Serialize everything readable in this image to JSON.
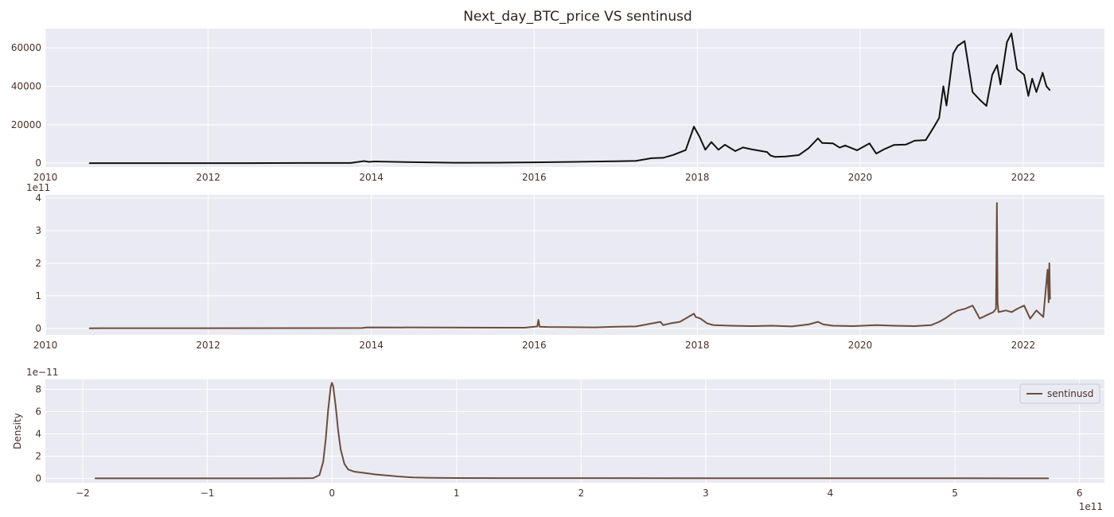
{
  "figure": {
    "title": "Next_day_BTC_price VS sentinusd"
  },
  "colors": {
    "panel_background": "#eaeaf2",
    "grid": "#ffffff",
    "price_line": "#111111",
    "sentinusd_line": "#6b4d3d",
    "text": "#4a3028"
  },
  "chart_data": [
    {
      "type": "line",
      "title": "Next_day_BTC_price VS sentinusd",
      "xlabel": "",
      "ylabel": "",
      "x_axis": "date",
      "xlim": [
        "2010-01-01",
        "2022-12-31"
      ],
      "xticks": [
        "2010",
        "2012",
        "2014",
        "2016",
        "2018",
        "2020",
        "2022"
      ],
      "ylim": [
        -2000,
        70000
      ],
      "yticks": [
        "0",
        "20000",
        "40000",
        "60000"
      ],
      "grid": true,
      "series": [
        {
          "color": "#111111",
          "x": [
            "2010-07-18",
            "2011-06-01",
            "2012-06-01",
            "2013-04-10",
            "2013-10-01",
            "2013-11-30",
            "2013-12-20",
            "2014-01-15",
            "2014-06-01",
            "2015-01-15",
            "2015-08-01",
            "2016-01-01",
            "2016-07-01",
            "2017-01-01",
            "2017-04-01",
            "2017-06-10",
            "2017-08-01",
            "2017-09-15",
            "2017-11-10",
            "2017-12-17",
            "2018-01-10",
            "2018-02-06",
            "2018-03-05",
            "2018-04-06",
            "2018-05-05",
            "2018-06-20",
            "2018-07-25",
            "2018-09-01",
            "2018-11-10",
            "2018-11-25",
            "2018-12-15",
            "2019-02-01",
            "2019-04-01",
            "2019-05-15",
            "2019-06-26",
            "2019-07-15",
            "2019-09-01",
            "2019-10-01",
            "2019-10-26",
            "2019-12-18",
            "2020-02-12",
            "2020-03-13",
            "2020-04-15",
            "2020-06-01",
            "2020-07-25",
            "2020-09-01",
            "2020-10-21",
            "2020-11-30",
            "2020-12-20",
            "2021-01-08",
            "2021-01-22",
            "2021-02-21",
            "2021-03-13",
            "2021-04-13",
            "2021-05-19",
            "2021-06-20",
            "2021-07-20",
            "2021-08-15",
            "2021-09-06",
            "2021-09-21",
            "2021-10-20",
            "2021-11-09",
            "2021-12-04",
            "2022-01-05",
            "2022-01-24",
            "2022-02-10",
            "2022-03-01",
            "2022-03-29",
            "2022-04-15",
            "2022-04-30"
          ],
          "values": [
            0.05,
            10,
            5,
            140,
            130,
            1100,
            700,
            900,
            600,
            220,
            280,
            430,
            680,
            1000,
            1200,
            2600,
            2800,
            4300,
            6800,
            19000,
            14000,
            7000,
            11000,
            7000,
            9600,
            6300,
            8200,
            7200,
            5800,
            4000,
            3300,
            3500,
            4200,
            7800,
            12900,
            10500,
            10300,
            8100,
            9200,
            6700,
            10300,
            5000,
            7100,
            9500,
            9700,
            11700,
            12000,
            19500,
            23500,
            40000,
            30000,
            57000,
            61000,
            63500,
            37000,
            33000,
            29800,
            46000,
            51000,
            41000,
            63000,
            67500,
            49000,
            46000,
            35000,
            44000,
            37000,
            47000,
            40000,
            38000
          ]
        }
      ]
    },
    {
      "type": "line",
      "title": "",
      "xlabel": "",
      "ylabel": "",
      "x_axis": "date",
      "xlim": [
        "2010-01-01",
        "2022-12-31"
      ],
      "xticks": [
        "2010",
        "2012",
        "2014",
        "2016",
        "2018",
        "2020",
        "2022"
      ],
      "ylim": [
        -0.2,
        4.1
      ],
      "yticks": [
        "0",
        "1",
        "2",
        "3",
        "4"
      ],
      "y_exponent": "1e11",
      "grid": true,
      "series": [
        {
          "color": "#6b4d3d",
          "x": [
            "2010-07-18",
            "2013-11-20",
            "2013-12-15",
            "2015-11-20",
            "2016-01-15",
            "2016-01-20",
            "2016-01-25",
            "2016-03-01",
            "2016-10-01",
            "2017-01-05",
            "2017-04-01",
            "2017-07-20",
            "2017-08-01",
            "2017-09-01",
            "2017-10-15",
            "2017-12-17",
            "2017-12-25",
            "2018-01-15",
            "2018-02-15",
            "2018-03-15",
            "2018-06-01",
            "2018-09-01",
            "2018-12-01",
            "2019-03-01",
            "2019-05-15",
            "2019-06-26",
            "2019-07-20",
            "2019-09-01",
            "2019-12-01",
            "2020-03-13",
            "2020-06-01",
            "2020-09-01",
            "2020-11-15",
            "2020-12-20",
            "2021-01-15",
            "2021-02-15",
            "2021-03-15",
            "2021-04-15",
            "2021-05-19",
            "2021-06-20",
            "2021-07-20",
            "2021-08-20",
            "2021-09-01",
            "2021-09-05",
            "2021-09-08",
            "2021-09-12",
            "2021-10-15",
            "2021-11-10",
            "2021-12-05",
            "2022-01-05",
            "2022-02-01",
            "2022-03-01",
            "2022-04-01",
            "2022-04-20",
            "2022-04-25",
            "2022-04-28",
            "2022-05-01"
          ],
          "values": [
            0.003,
            0.01,
            0.03,
            0.02,
            0.06,
            0.26,
            0.05,
            0.04,
            0.03,
            0.05,
            0.06,
            0.2,
            0.1,
            0.15,
            0.2,
            0.45,
            0.35,
            0.3,
            0.15,
            0.1,
            0.08,
            0.07,
            0.08,
            0.06,
            0.12,
            0.2,
            0.12,
            0.08,
            0.07,
            0.1,
            0.08,
            0.07,
            0.1,
            0.2,
            0.3,
            0.45,
            0.55,
            0.6,
            0.7,
            0.3,
            0.4,
            0.5,
            0.6,
            3.85,
            0.8,
            0.5,
            0.55,
            0.5,
            0.6,
            0.7,
            0.3,
            0.55,
            0.35,
            1.8,
            0.8,
            2.0,
            0.9
          ]
        }
      ]
    },
    {
      "type": "line",
      "title": "",
      "xlabel": "",
      "ylabel": "Density",
      "xlim": [
        -2.3,
        6.2
      ],
      "ylim": [
        -0.4,
        8.9
      ],
      "xticks": [
        "−2",
        "−1",
        "0",
        "1",
        "2",
        "3",
        "4",
        "5",
        "6"
      ],
      "yticks": [
        "0",
        "2",
        "4",
        "6",
        "8"
      ],
      "x_exponent": "1e11",
      "y_exponent": "1e−11",
      "legend": "top-right",
      "grid": true,
      "series": [
        {
          "name": "sentinusd",
          "color": "#6b4d3d",
          "x": [
            -1.9,
            -0.5,
            -0.15,
            -0.1,
            -0.07,
            -0.05,
            -0.03,
            -0.01,
            0.0,
            0.01,
            0.03,
            0.05,
            0.07,
            0.1,
            0.13,
            0.18,
            0.25,
            0.35,
            0.45,
            0.55,
            0.65,
            0.8,
            1.0,
            1.5,
            2.0,
            3.0,
            4.0,
            5.0,
            5.75
          ],
          "values": [
            0,
            0,
            0.02,
            0.3,
            1.5,
            3.5,
            6.2,
            8.2,
            8.6,
            8.3,
            6.5,
            4.3,
            2.6,
            1.3,
            0.8,
            0.6,
            0.5,
            0.35,
            0.25,
            0.15,
            0.08,
            0.05,
            0.03,
            0.02,
            0.02,
            0.01,
            0.01,
            0.01,
            0
          ]
        }
      ]
    }
  ]
}
